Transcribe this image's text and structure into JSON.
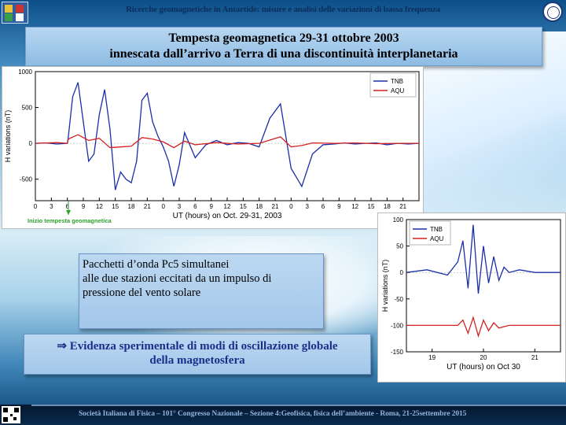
{
  "header": {
    "banner": "Ricerche geomagnetiche in Antartide: misure e analisi delle variazioni di bassa frequenza",
    "title_line1": "Tempesta geomagnetica 29-31 ottobre 2003",
    "title_line2": "innescata dall’arrivo a Terra di una discontinuità interplanetaria"
  },
  "textbox": {
    "line1": "Pacchetti d’onda Pc5 simultanei",
    "line2": "alle due stazioni eccitati da un impulso di",
    "line3": "pressione del vento solare"
  },
  "evidence": {
    "line1": "⇒ Evidenza sperimentale di modi di oscillazione globale",
    "line2": "della magnetosfera"
  },
  "footer": {
    "text": "Società Italiana di Fisica – 101° Congresso Nazionale – Sezione 4:Geofisica, fisica dell’ambiente - Roma, 21-25settembre 2015"
  },
  "colors": {
    "tnb": "#1a2fa8",
    "aqu": "#d42020",
    "marker": "#2ca02c",
    "title_text": "#1a2f8a"
  },
  "icons": {
    "left_logo": "logo-icon",
    "right_logo": "seal-icon",
    "qr": "qr-code-icon"
  },
  "chart_data": [
    {
      "type": "line",
      "title": "",
      "xlabel": "UT (hours) on Oct. 29-31, 2003",
      "ylabel": "H variations (nT)",
      "xlim": [
        0,
        72
      ],
      "ylim": [
        -800,
        1000
      ],
      "xticks": [
        0,
        3,
        6,
        9,
        12,
        15,
        18,
        21,
        24,
        27,
        30,
        33,
        36,
        39,
        42,
        45,
        48,
        51,
        54,
        57,
        60,
        63,
        66,
        69,
        72
      ],
      "xtick_labels": [
        "0",
        "3",
        "6",
        "9",
        "12",
        "15",
        "18",
        "21",
        "0",
        "3",
        "6",
        "9",
        "12",
        "15",
        "18",
        "21",
        "0",
        "3",
        "6",
        "9",
        "12",
        "15",
        "18",
        "21",
        ""
      ],
      "yticks": [
        1000,
        500,
        0,
        -500
      ],
      "legend": [
        "TNB",
        "AQU"
      ],
      "legend_position": "top-right",
      "annotation": "Inizio tempesta geomagnetica",
      "annotation_x": 6.2,
      "series": [
        {
          "name": "TNB",
          "x": [
            0,
            2,
            4,
            6,
            6.2,
            7,
            8,
            9,
            10,
            11,
            12,
            13,
            14,
            15,
            16,
            17,
            18,
            19,
            20,
            21,
            22,
            23,
            24,
            25,
            26,
            27,
            28,
            30,
            32,
            34,
            36,
            38,
            40,
            42,
            44,
            46,
            48,
            50,
            52,
            54,
            56,
            58,
            60,
            62,
            64,
            66,
            68,
            70,
            72
          ],
          "values": [
            0,
            5,
            -10,
            0,
            100,
            650,
            850,
            300,
            -250,
            -150,
            400,
            750,
            200,
            -650,
            -400,
            -500,
            -550,
            -250,
            600,
            700,
            300,
            100,
            -50,
            -250,
            -600,
            -300,
            150,
            -200,
            -20,
            40,
            -20,
            10,
            0,
            -50,
            350,
            550,
            -350,
            -600,
            -150,
            -20,
            -10,
            5,
            -10,
            0,
            5,
            -20,
            0,
            -10,
            0
          ]
        },
        {
          "name": "AQU",
          "x": [
            0,
            4,
            6,
            6.2,
            8,
            10,
            12,
            14,
            16,
            18,
            20,
            22,
            24,
            26,
            28,
            30,
            34,
            38,
            42,
            46,
            48,
            50,
            52,
            56,
            60,
            64,
            68,
            72
          ],
          "values": [
            0,
            10,
            0,
            60,
            120,
            40,
            70,
            -60,
            -50,
            -40,
            80,
            60,
            20,
            -60,
            30,
            -20,
            10,
            -10,
            0,
            90,
            -50,
            -30,
            5,
            0,
            5,
            -5,
            0,
            0
          ]
        }
      ]
    },
    {
      "type": "line",
      "title": "",
      "xlabel": "UT (hours) on Oct 30",
      "ylabel": "H variations (nT)",
      "xlim": [
        18.5,
        21.5
      ],
      "ylim": [
        -150,
        100
      ],
      "xticks": [
        19,
        20,
        21
      ],
      "yticks": [
        100,
        50,
        0,
        -50,
        -100,
        -150
      ],
      "legend": [
        "TNB",
        "AQU"
      ],
      "legend_position": "top-left",
      "series": [
        {
          "name": "TNB",
          "x": [
            18.5,
            18.9,
            19.3,
            19.5,
            19.6,
            19.7,
            19.8,
            19.9,
            20.0,
            20.1,
            20.2,
            20.3,
            20.4,
            20.5,
            20.7,
            21.0,
            21.5
          ],
          "values": [
            0,
            5,
            -5,
            20,
            60,
            -30,
            90,
            -40,
            50,
            -20,
            30,
            -15,
            10,
            0,
            5,
            0,
            0
          ]
        },
        {
          "name": "AQU",
          "x": [
            18.5,
            19.0,
            19.5,
            19.6,
            19.7,
            19.8,
            19.9,
            20.0,
            20.1,
            20.2,
            20.3,
            20.5,
            21.0,
            21.5
          ],
          "values": [
            -100,
            -100,
            -100,
            -90,
            -115,
            -85,
            -120,
            -90,
            -110,
            -95,
            -105,
            -100,
            -100,
            -100
          ]
        }
      ]
    }
  ]
}
